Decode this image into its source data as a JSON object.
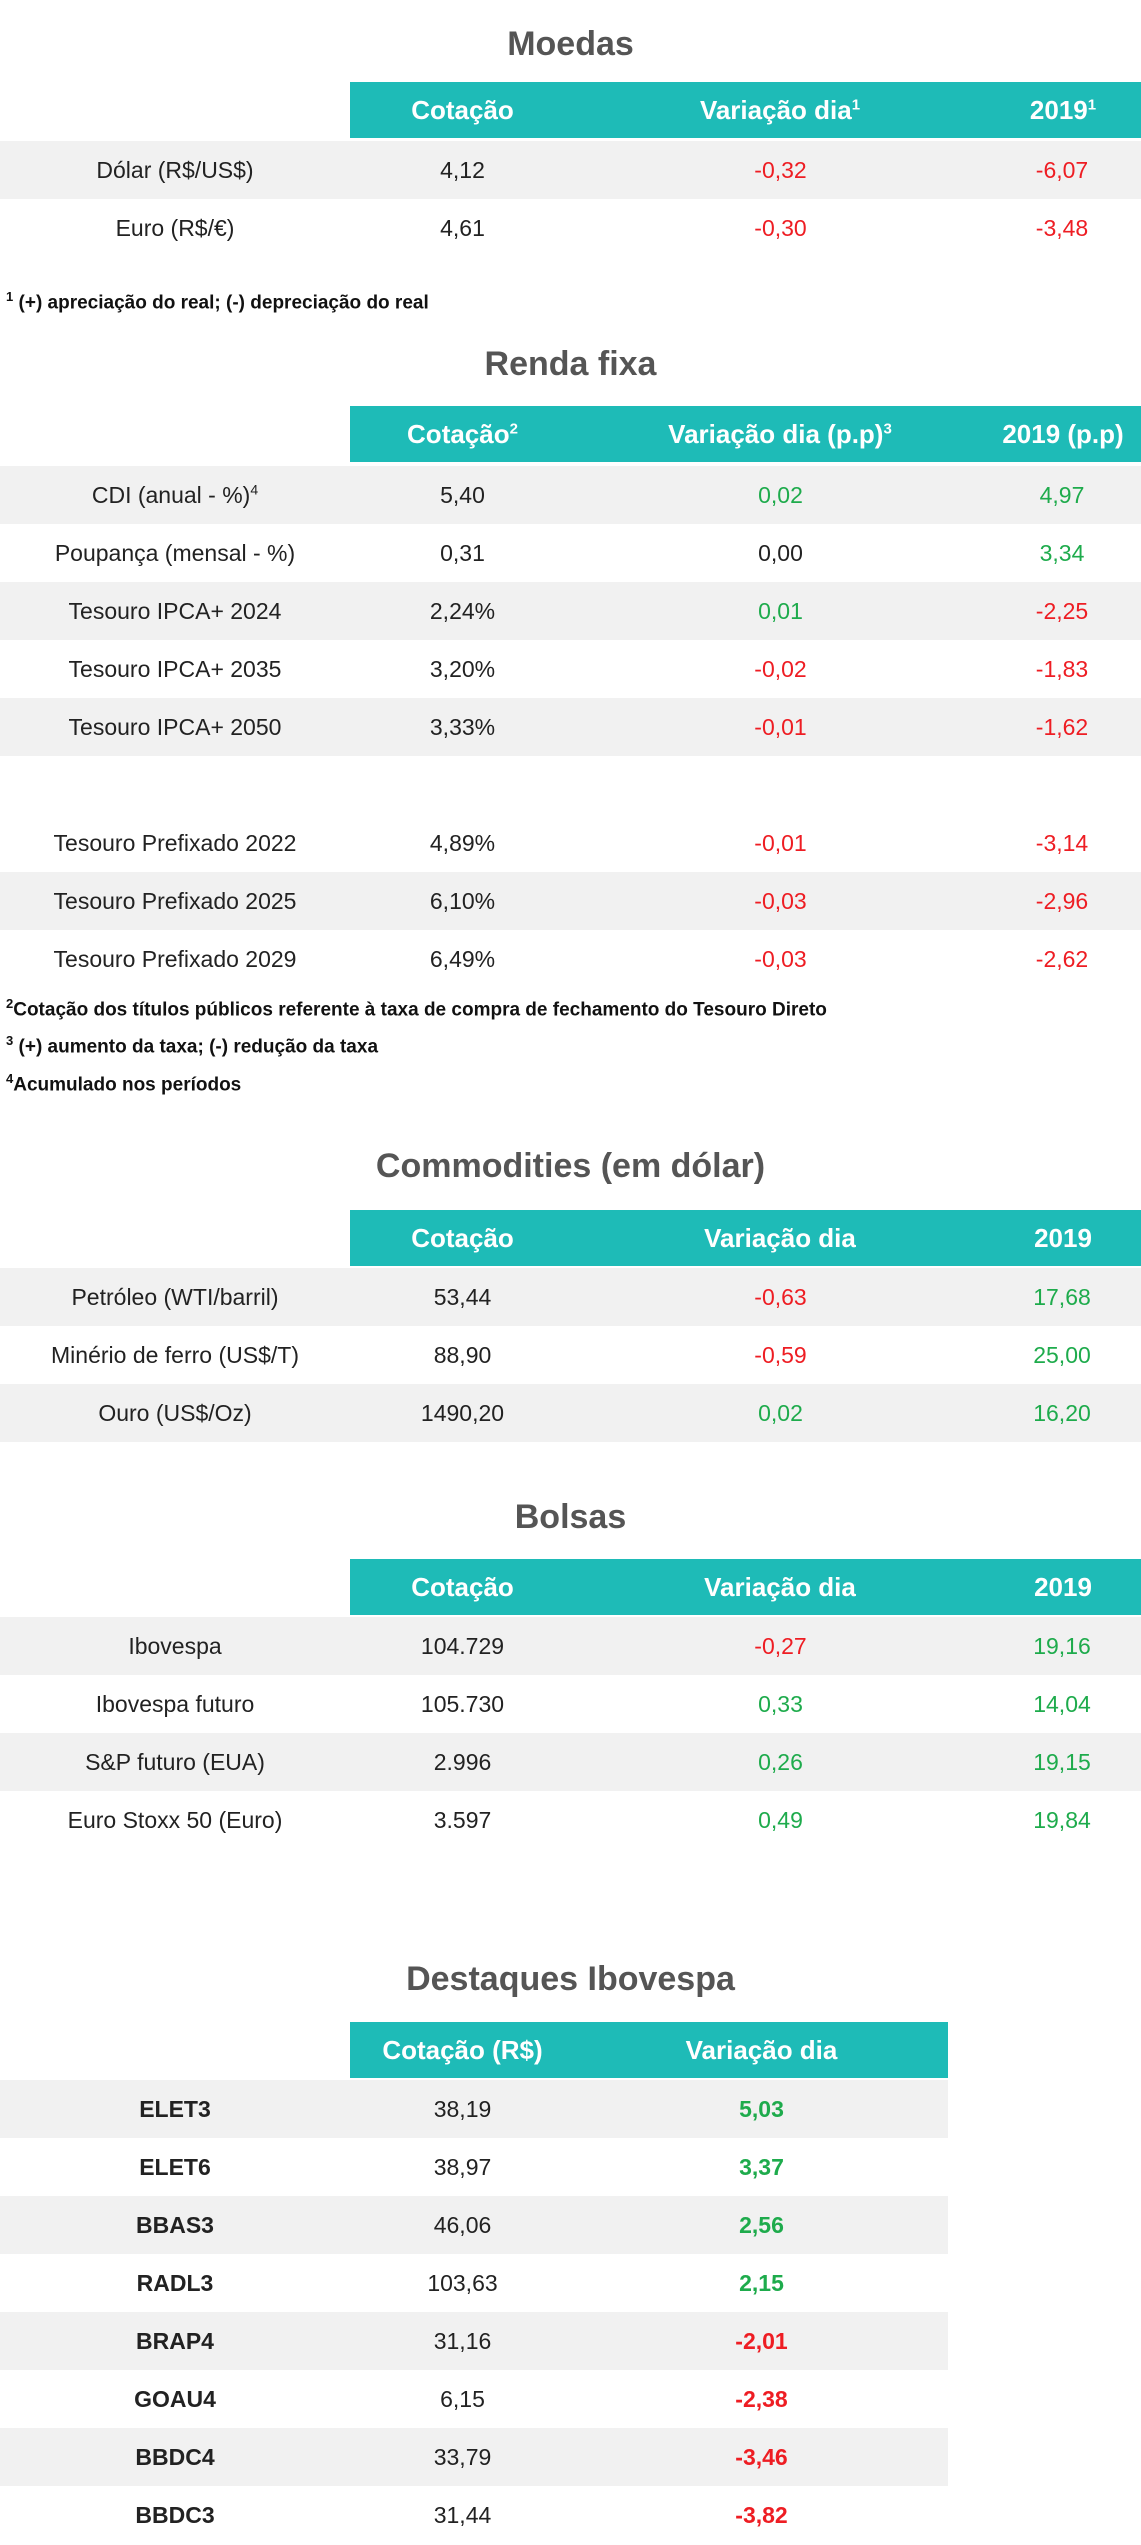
{
  "moedas": {
    "title": "Moedas",
    "headers": [
      "Cotação",
      "Variação dia",
      "2019"
    ],
    "rows": [
      {
        "label": "Dólar (R$/US$)",
        "cot": "4,12",
        "var": "-0,32",
        "y2019": "-6,07"
      },
      {
        "label": "Euro (R$/€)",
        "cot": "4,61",
        "var": "-0,30",
        "y2019": "-3,48"
      }
    ],
    "note": "(+) apreciação do real; (-) depreciação do real"
  },
  "renda": {
    "title": "Renda fixa",
    "headers": [
      "Cotação",
      "Variação dia (p.p)",
      "2019 (p.p)"
    ],
    "rows": [
      {
        "label": "CDI (anual - %)",
        "cot": "5,40",
        "var": "0,02",
        "y2019": "4,97"
      },
      {
        "label": "Poupança (mensal - %)",
        "cot": "0,31",
        "var": "0,00",
        "y2019": "3,34"
      },
      {
        "label": "Tesouro IPCA+ 2024",
        "cot": "2,24%",
        "var": "0,01",
        "y2019": "-2,25"
      },
      {
        "label": "Tesouro IPCA+ 2035",
        "cot": "3,20%",
        "var": "-0,02",
        "y2019": "-1,83"
      },
      {
        "label": "Tesouro IPCA+ 2050",
        "cot": "3,33%",
        "var": "-0,01",
        "y2019": "-1,62"
      },
      {
        "label": "Tesouro Prefixado 2022",
        "cot": "4,89%",
        "var": "-0,01",
        "y2019": "-3,14"
      },
      {
        "label": "Tesouro Prefixado 2025",
        "cot": "6,10%",
        "var": "-0,03",
        "y2019": "-2,96"
      },
      {
        "label": "Tesouro Prefixado 2029",
        "cot": "6,49%",
        "var": "-0,03",
        "y2019": "-2,62"
      }
    ],
    "notes": [
      "Cotação dos títulos públicos referente à taxa de compra de fechamento do Tesouro Direto",
      "(+) aumento da taxa; (-) redução da taxa",
      "Acumulado nos períodos"
    ]
  },
  "commodities": {
    "title": "Commodities (em dólar)",
    "headers": [
      "Cotação",
      "Variação dia",
      "2019"
    ],
    "rows": [
      {
        "label": "Petróleo (WTI/barril)",
        "cot": "53,44",
        "var": "-0,63",
        "y2019": "17,68"
      },
      {
        "label": "Minério de ferro (US$/T)",
        "cot": "88,90",
        "var": "-0,59",
        "y2019": "25,00"
      },
      {
        "label": "Ouro (US$/Oz)",
        "cot": "1490,20",
        "var": "0,02",
        "y2019": "16,20"
      }
    ]
  },
  "bolsas": {
    "title": "Bolsas",
    "headers": [
      "Cotação",
      "Variação dia",
      "2019"
    ],
    "rows": [
      {
        "label": "Ibovespa",
        "cot": "104.729",
        "var": "-0,27",
        "y2019": "19,16"
      },
      {
        "label": "Ibovespa futuro",
        "cot": "105.730",
        "var": "0,33",
        "y2019": "14,04"
      },
      {
        "label": "S&P futuro (EUA)",
        "cot": "2.996",
        "var": "0,26",
        "y2019": "19,15"
      },
      {
        "label": "Euro Stoxx 50 (Euro)",
        "cot": "3.597",
        "var": "0,49",
        "y2019": "19,84"
      }
    ]
  },
  "destaques": {
    "title": "Destaques Ibovespa",
    "headers": [
      "Cotação (R$)",
      "Variação dia"
    ],
    "rows": [
      {
        "label": "ELET3",
        "cot": "38,19",
        "var": "5,03"
      },
      {
        "label": "ELET6",
        "cot": "38,97",
        "var": "3,37"
      },
      {
        "label": "BBAS3",
        "cot": "46,06",
        "var": "2,56"
      },
      {
        "label": "RADL3",
        "cot": "103,63",
        "var": "2,15"
      },
      {
        "label": "BRAP4",
        "cot": "31,16",
        "var": "-2,01"
      },
      {
        "label": "GOAU4",
        "cot": "6,15",
        "var": "-2,38"
      },
      {
        "label": "BBDC4",
        "cot": "33,79",
        "var": "-3,46"
      },
      {
        "label": "BBDC3",
        "cot": "31,44",
        "var": "-3,82"
      }
    ]
  },
  "colors": {
    "header_bg": "#1ebbb7",
    "positive": "#1eab4c",
    "negative": "#ee1d23",
    "stripe": "#f1f1f1"
  }
}
